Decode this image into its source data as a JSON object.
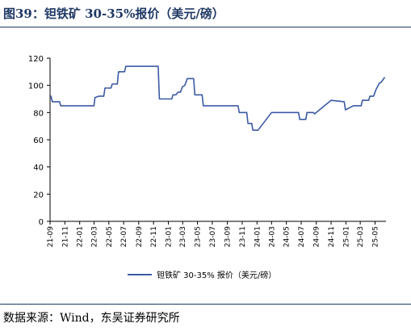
{
  "title": "图39：钽铁矿 30-35%报价（美元/磅）",
  "source": "数据来源：Wind，东吴证券研究所",
  "colors": {
    "title": "#1f3864",
    "line": "#3b5aa3",
    "axis": "#000000"
  },
  "chart_data": {
    "type": "line",
    "title": "",
    "xlabel": "",
    "ylabel": "",
    "ylim": [
      0,
      120
    ],
    "yticks": [
      0,
      20,
      40,
      60,
      80,
      100,
      120
    ],
    "xlim": [
      "2021-09-01",
      "2025-06-15"
    ],
    "xticks": [
      "21-09",
      "21-11",
      "22-01",
      "22-03",
      "22-05",
      "22-07",
      "22-09",
      "22-11",
      "23-01",
      "23-03",
      "23-05",
      "23-07",
      "23-09",
      "23-11",
      "24-01",
      "24-03",
      "24-05",
      "24-07",
      "24-09",
      "24-11",
      "25-01",
      "25-03",
      "25-05"
    ],
    "grid": false,
    "legend_position": "bottom-center",
    "series": [
      {
        "name": "钽铁矿 30-35% 报价（美元/磅）",
        "x": [
          "2021-09-01",
          "2021-09-05",
          "2021-09-10",
          "2021-10-10",
          "2021-10-15",
          "2022-03-01",
          "2022-03-05",
          "2022-03-20",
          "2022-04-10",
          "2022-04-15",
          "2022-05-10",
          "2022-05-15",
          "2022-06-05",
          "2022-06-10",
          "2022-07-05",
          "2022-07-10",
          "2022-11-20",
          "2022-11-25",
          "2023-01-15",
          "2023-01-20",
          "2023-02-01",
          "2023-02-10",
          "2023-02-20",
          "2023-02-28",
          "2023-03-10",
          "2023-03-20",
          "2023-04-15",
          "2023-04-20",
          "2023-05-20",
          "2023-05-25",
          "2023-10-15",
          "2023-10-20",
          "2023-11-20",
          "2023-11-25",
          "2023-12-10",
          "2023-12-15",
          "2024-01-05",
          "2024-03-01",
          "2024-06-20",
          "2024-06-25",
          "2024-07-20",
          "2024-07-25",
          "2024-08-20",
          "2024-08-25",
          "2024-11-01",
          "2024-12-25",
          "2024-12-30",
          "2025-02-01",
          "2025-02-10",
          "2025-03-05",
          "2025-03-10",
          "2025-04-05",
          "2025-04-10",
          "2025-04-25",
          "2025-05-05",
          "2025-05-20",
          "2025-05-25",
          "2025-06-10"
        ],
        "values": [
          92,
          92,
          88,
          88,
          85,
          85,
          91,
          92,
          92,
          98,
          98,
          101,
          101,
          110,
          110,
          114,
          114,
          90,
          90,
          93,
          93,
          95,
          95,
          99,
          100,
          105,
          105,
          93,
          93,
          85,
          85,
          80,
          80,
          72,
          72,
          67,
          67,
          80,
          80,
          75,
          75,
          80,
          80,
          79,
          89,
          88,
          82,
          85,
          85,
          85,
          89,
          89,
          92,
          92,
          97,
          102,
          102,
          106
        ]
      }
    ]
  }
}
